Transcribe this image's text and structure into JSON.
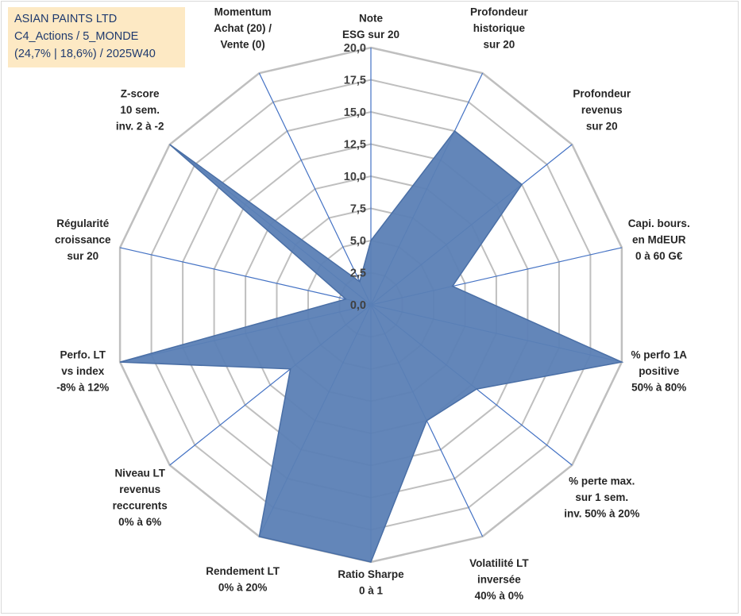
{
  "info_box": {
    "company": "ASIAN PAINTS LTD",
    "category": "C4_Actions / 5_MONDE",
    "stats": "(24,7% | 18,6%) / 2025W40"
  },
  "colors": {
    "fill": "#5b7fb5",
    "stroke": "#4a6fa6",
    "spoke": "#4472c4",
    "grid": "#bfbfbf",
    "info_bg": "#fde9c4",
    "info_text": "#1f3a6e"
  },
  "chart_data": {
    "type": "radar",
    "title": "",
    "rmin": 0,
    "rmax": 20,
    "tick_step": 2.5,
    "tick_labels": [
      "0,0",
      "2,5",
      "5,0",
      "7,5",
      "10,0",
      "12,5",
      "15,0",
      "17,5",
      "20,0"
    ],
    "axes": [
      {
        "lines": [
          "Note",
          "ESG sur 20"
        ]
      },
      {
        "lines": [
          "Profondeur",
          "historique",
          "sur 20"
        ]
      },
      {
        "lines": [
          "Profondeur",
          "revenus",
          "sur 20"
        ]
      },
      {
        "lines": [
          "Capi. bours.",
          "en MdEUR",
          "0 à 60 G€"
        ]
      },
      {
        "lines": [
          "% perfo 1A",
          "positive",
          "50% à 80%"
        ]
      },
      {
        "lines": [
          "% perte max.",
          "sur 1 sem.",
          "inv. 50% à 20%"
        ]
      },
      {
        "lines": [
          "Volatilité LT",
          "inversée",
          "40% à 0%"
        ]
      },
      {
        "lines": [
          "Ratio Sharpe",
          "0 à 1"
        ]
      },
      {
        "lines": [
          "Rendement LT",
          "0% à 20%"
        ]
      },
      {
        "lines": [
          "Niveau LT",
          "revenus",
          "reccurents",
          "0% à 6%"
        ]
      },
      {
        "lines": [
          "Perfo. LT",
          "vs index",
          "-8% à 12%"
        ]
      },
      {
        "lines": [
          "Régularité",
          "croissance",
          "sur 20"
        ]
      },
      {
        "lines": [
          "Z-score",
          "10 sem.",
          "inv. 2 à -2"
        ]
      },
      {
        "lines": [
          "Momentum",
          "Achat (20) /",
          "Vente (0)"
        ]
      }
    ],
    "series": [
      {
        "name": "ASIAN PAINTS LTD",
        "values": [
          5.0,
          15.0,
          15.0,
          6.5,
          20.0,
          10.5,
          10.0,
          20.0,
          20.0,
          8.0,
          20.0,
          2.0,
          20.0,
          2.0
        ]
      }
    ]
  }
}
